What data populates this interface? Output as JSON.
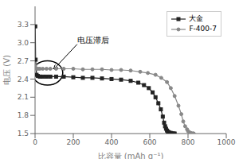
{
  "chart_data": {
    "type": "line",
    "xlabel": "比容量 (mAh g⁻¹)",
    "ylabel": "电压 (V)",
    "xlim": [
      0,
      1000
    ],
    "ylim": [
      1.5,
      3.6
    ],
    "xticks": [
      0,
      200,
      400,
      600,
      800,
      1000
    ],
    "yticks": [
      1.5,
      1.8,
      2.1,
      2.4,
      2.7,
      {
        "value": 3.0,
        "label": "3.0"
      },
      3.3
    ],
    "grid": false,
    "legend": "upper right",
    "series": [
      {
        "name": "大金",
        "color": "#222222",
        "marker": "square",
        "x": [
          1,
          3,
          8,
          15,
          25,
          40,
          60,
          80,
          110,
          150,
          200,
          250,
          300,
          350,
          400,
          450,
          500,
          540,
          570,
          595,
          615,
          630,
          645,
          658,
          668,
          675,
          680,
          685,
          690,
          695,
          700,
          705,
          710,
          715,
          720,
          725,
          730
        ],
        "values": [
          3.27,
          2.72,
          2.47,
          2.45,
          2.44,
          2.44,
          2.44,
          2.44,
          2.44,
          2.44,
          2.43,
          2.42,
          2.42,
          2.41,
          2.4,
          2.39,
          2.37,
          2.34,
          2.3,
          2.25,
          2.18,
          2.1,
          2.0,
          1.9,
          1.78,
          1.68,
          1.62,
          1.58,
          1.55,
          1.53,
          1.52,
          1.51,
          1.51,
          1.5,
          1.5,
          1.5,
          1.5
        ]
      },
      {
        "name": "F-400-7",
        "color": "#888888",
        "marker": "circle",
        "x": [
          1,
          3,
          8,
          15,
          25,
          40,
          60,
          80,
          110,
          150,
          200,
          250,
          300,
          350,
          400,
          450,
          500,
          550,
          590,
          630,
          660,
          690,
          710,
          730,
          750,
          765,
          775,
          785,
          795,
          800,
          808,
          815,
          820,
          825,
          828,
          830
        ],
        "values": [
          2.62,
          2.58,
          2.57,
          2.57,
          2.57,
          2.57,
          2.57,
          2.57,
          2.57,
          2.57,
          2.57,
          2.56,
          2.56,
          2.56,
          2.55,
          2.55,
          2.54,
          2.52,
          2.5,
          2.47,
          2.42,
          2.35,
          2.25,
          2.12,
          1.96,
          1.82,
          1.7,
          1.62,
          1.57,
          1.54,
          1.52,
          1.51,
          1.5,
          1.5,
          1.5,
          1.5
        ]
      }
    ],
    "annotations": [
      {
        "text": "电压滞后",
        "xy": [
          100,
          2.57
        ],
        "xytext": [
          220,
          3.0
        ]
      }
    ],
    "ellipse": {
      "center": [
        65,
        2.5
      ],
      "width": 160,
      "height": 0.4
    }
  }
}
